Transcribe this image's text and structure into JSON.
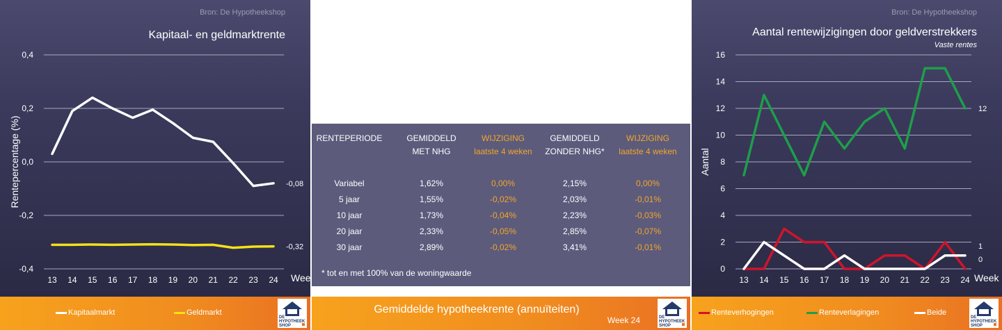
{
  "left_panel": {
    "source": "Bron: De Hypotheekshop",
    "legend": [
      {
        "label": "Kapitaalmarkt",
        "color": "#ffffff"
      },
      {
        "label": "Geldmarkt",
        "color": "#f2e11a"
      }
    ],
    "chart_data": {
      "type": "line",
      "title": "Kapitaal- en geldmarktrente",
      "xlabel": "Week",
      "ylabel": "Rentepercentage (%)",
      "x": [
        13,
        14,
        15,
        16,
        17,
        18,
        19,
        20,
        21,
        22,
        23,
        24
      ],
      "ylim": [
        -0.4,
        0.4
      ],
      "yticks": [
        "0,4",
        "0,2",
        "0,0",
        "-0,2",
        "-0,4"
      ],
      "ytick_values": [
        0.4,
        0.2,
        0.0,
        -0.2,
        -0.4
      ],
      "grid": true,
      "series": [
        {
          "name": "Kapitaalmarkt",
          "color": "#ffffff",
          "values": [
            0.03,
            0.19,
            0.24,
            0.2,
            0.165,
            0.195,
            0.145,
            0.09,
            0.075,
            -0.005,
            -0.09,
            -0.08
          ],
          "end_label": "-0,08"
        },
        {
          "name": "Geldmarkt",
          "color": "#f2e11a",
          "values": [
            -0.31,
            -0.31,
            -0.309,
            -0.31,
            -0.309,
            -0.308,
            -0.309,
            -0.311,
            -0.31,
            -0.321,
            -0.317,
            -0.316
          ],
          "end_label": "-0,32"
        }
      ]
    }
  },
  "table": {
    "headers": [
      [
        "RENTEPERIODE",
        ""
      ],
      [
        "GEMIDDELD",
        "MET NHG"
      ],
      [
        "WIJZIGING",
        "laatste 4 weken"
      ],
      [
        "GEMIDDELD",
        "ZONDER NHG*"
      ],
      [
        "WIJZIGING",
        "laatste 4 weken"
      ]
    ],
    "rows": [
      [
        "Variabel",
        "1,62%",
        "0,00%",
        "2,15%",
        "0,00%"
      ],
      [
        "5 jaar",
        "1,55%",
        "-0,02%",
        "2,03%",
        "-0,01%"
      ],
      [
        "10 jaar",
        "1,73%",
        "-0,04%",
        "2,23%",
        "-0,03%"
      ],
      [
        "20 jaar",
        "2,33%",
        "-0,05%",
        "2,85%",
        "-0,07%"
      ],
      [
        "30 jaar",
        "2,89%",
        "-0,02%",
        "3,41%",
        "-0,01%"
      ]
    ],
    "footnote": "* tot en met 100% van de woningwaarde",
    "title": "Gemiddelde hypotheekrente (annuïteiten)",
    "week": "Week 24"
  },
  "right_panel": {
    "source": "Bron: De Hypotheekshop",
    "subtitle": "Vaste rentes",
    "legend": [
      {
        "label": "Renteverhogingen",
        "color": "#d0142c"
      },
      {
        "label": "Renteverlagingen",
        "color": "#1e9e4a"
      },
      {
        "label": "Beide",
        "color": "#ffffff"
      }
    ],
    "chart_data": {
      "type": "line",
      "title": "Aantal rentewijzigingen door geldverstrekkers",
      "xlabel": "Week",
      "ylabel": "Aantal",
      "x": [
        13,
        14,
        15,
        16,
        17,
        18,
        19,
        20,
        21,
        22,
        23,
        24
      ],
      "ylim": [
        0,
        16
      ],
      "yticks": [
        "16",
        "14",
        "12",
        "10",
        "8",
        "6",
        "4",
        "2",
        "0"
      ],
      "ytick_values": [
        16,
        14,
        12,
        10,
        8,
        6,
        4,
        2,
        0
      ],
      "grid": true,
      "series": [
        {
          "name": "Renteverhogingen",
          "color": "#d0142c",
          "values": [
            0,
            0,
            3,
            2,
            2,
            0,
            0,
            1,
            1,
            0,
            2,
            0
          ],
          "end_label": "0"
        },
        {
          "name": "Renteverlagingen",
          "color": "#1e9e4a",
          "values": [
            7,
            13,
            10,
            7,
            11,
            9,
            11,
            12,
            9,
            15,
            15,
            12
          ],
          "end_label": "12"
        },
        {
          "name": "Beide",
          "color": "#ffffff",
          "values": [
            0,
            2,
            1,
            0,
            0,
            1,
            0,
            0,
            0,
            0,
            1,
            1
          ],
          "end_label": "1"
        }
      ]
    }
  },
  "logo": {
    "line1": "DE",
    "line2": "HYPOTHEEK",
    "line3": "SHOP"
  }
}
